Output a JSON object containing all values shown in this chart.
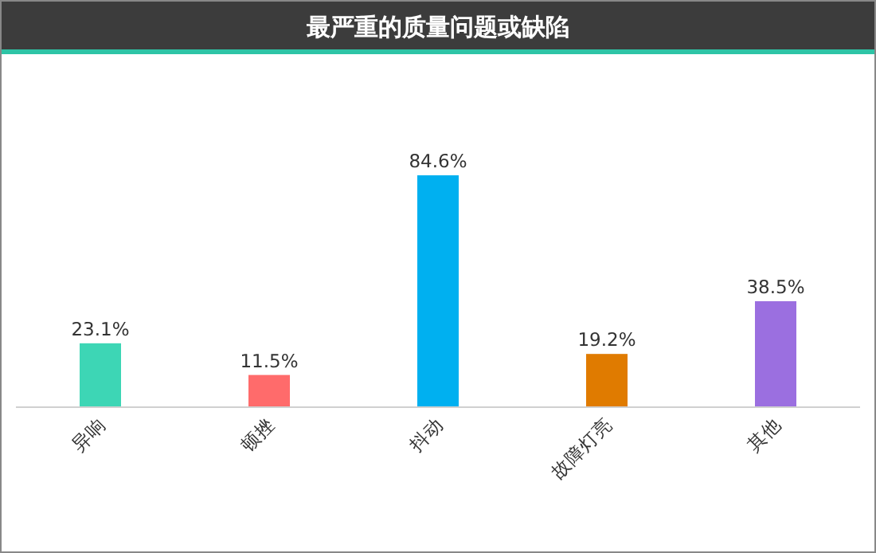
{
  "chart_data": {
    "type": "bar",
    "title": "最严重的质量问题或缺陷",
    "categories": [
      "异响",
      "顿挫",
      "抖动",
      "故障灯亮",
      "其他"
    ],
    "values": [
      23.1,
      11.5,
      84.6,
      19.2,
      38.5
    ],
    "colors": [
      "#3dd6b5",
      "#ff6b6b",
      "#00b0f0",
      "#e07b00",
      "#9b6fe0"
    ],
    "value_labels": [
      "23.1%",
      "11.5%",
      "84.6%",
      "19.2%",
      "38.5%"
    ]
  }
}
